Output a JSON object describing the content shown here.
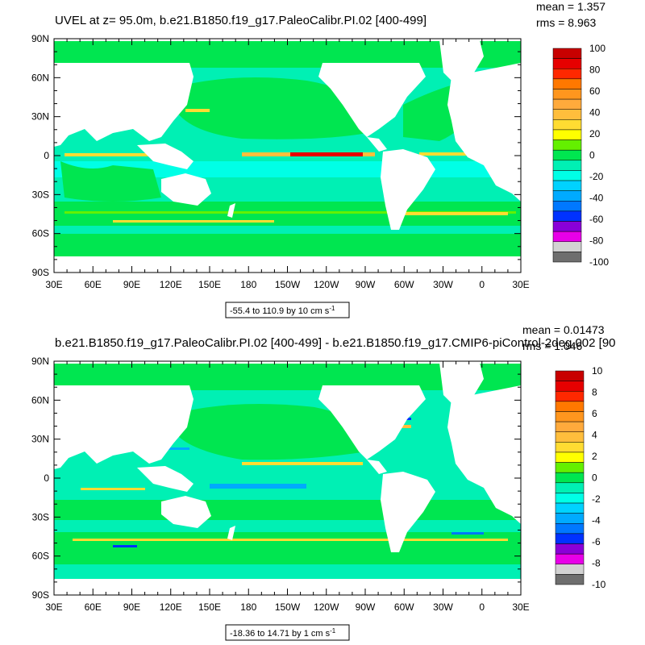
{
  "panels": [
    {
      "title": "UVEL at z=  95.0m, b.e21.B1850.f19_g17.PaleoCalibr.PI.02 [400-499]",
      "mean": "mean = 1.357",
      "rms": "rms = 8.963",
      "range_label": "-55.4 to 110.9 by 10 cm s",
      "range_sup": "-1",
      "colorbar_labels": [
        "100",
        "80",
        "60",
        "40",
        "20",
        "0",
        "-20",
        "-40",
        "-60",
        "-80",
        "-100"
      ]
    },
    {
      "title": "b.e21.B1850.f19_g17.PaleoCalibr.PI.02 [400-499] - b.e21.B1850.f19_g17.CMIP6-piControl-2deg.002 [90",
      "mean": "mean = 0.01473",
      "rms": "rms = 1.046",
      "range_label": "-18.36 to 14.71 by 1 cm s",
      "range_sup": "-1",
      "colorbar_labels": [
        "10",
        "8",
        "6",
        "4",
        "2",
        "0",
        "-2",
        "-4",
        "-6",
        "-8",
        "-10"
      ]
    }
  ],
  "y_ticks": [
    "90N",
    "60N",
    "30N",
    "0",
    "30S",
    "60S",
    "90S"
  ],
  "x_ticks": [
    "30E",
    "60E",
    "90E",
    "120E",
    "150E",
    "180",
    "150W",
    "120W",
    "90W",
    "60W",
    "30W",
    "0",
    "30E"
  ],
  "colorbar_colors": [
    "#6e6e6e",
    "#d2d2d2",
    "#e800e8",
    "#8a00d8",
    "#0032ff",
    "#0078ff",
    "#00aaff",
    "#00d2ff",
    "#00ffe6",
    "#00f0b4",
    "#00e650",
    "#64f000",
    "#ffff00",
    "#ffdc32",
    "#ffbe3c",
    "#ffaa3c",
    "#ff961e",
    "#ff7800",
    "#ff2800",
    "#e60000",
    "#c80000"
  ],
  "palette": {
    "land": "#ffffff",
    "ocean_base": "#00f0b4",
    "ocean_mid": "#00e650",
    "ocean_cool": "#00ffe6"
  }
}
